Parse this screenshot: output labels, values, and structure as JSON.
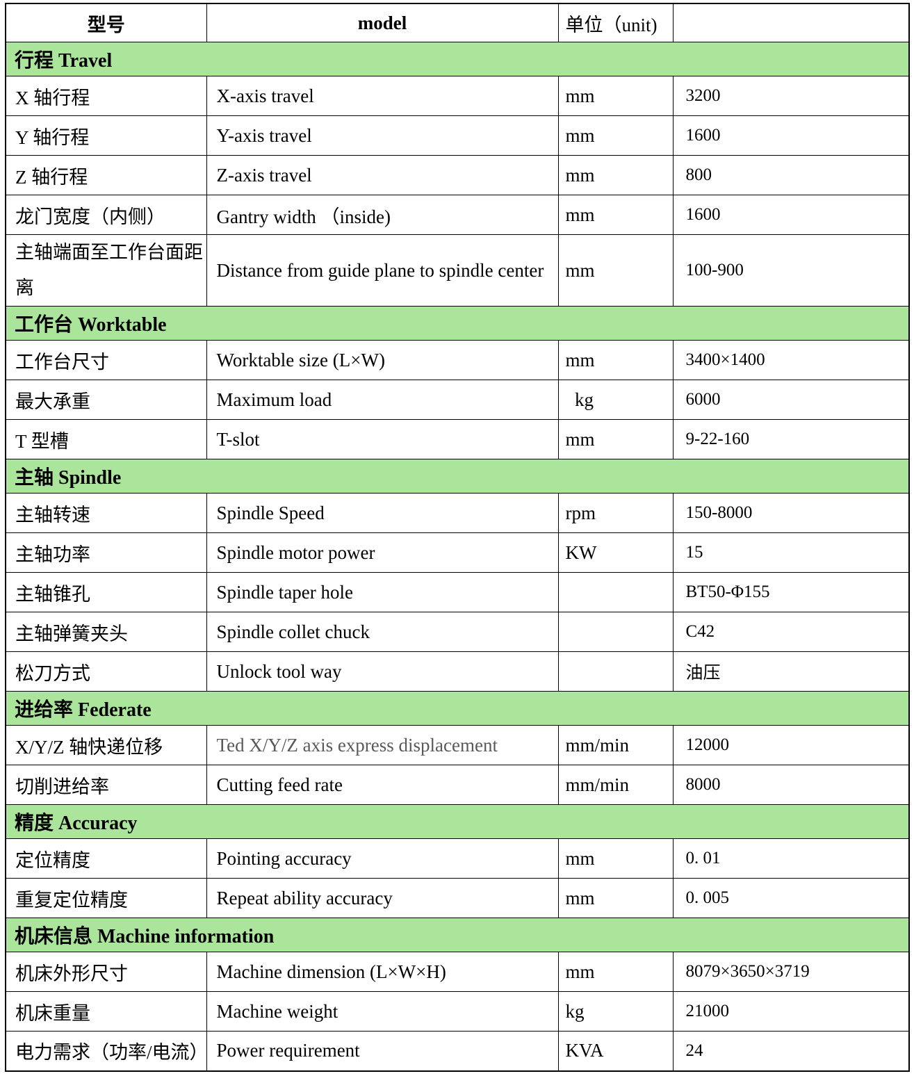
{
  "colors": {
    "section_bg": "#ABE59B",
    "border": "#000000",
    "muted_text": "#595959",
    "page_bg": "#ffffff"
  },
  "header": {
    "model_cn": "型号",
    "model_en": "model",
    "unit": "单位（unit)",
    "value": ""
  },
  "sections": [
    {
      "title": "行程 Travel",
      "rows": [
        {
          "cn": "X 轴行程",
          "en": "X-axis travel",
          "unit": "mm",
          "value": "3200"
        },
        {
          "cn": "Y 轴行程",
          "en": "Y-axis travel",
          "unit": "mm",
          "value": "1600"
        },
        {
          "cn": "Z 轴行程",
          "en": "Z-axis travel",
          "unit": "mm",
          "value": "800"
        },
        {
          "cn": "龙门宽度（内侧）",
          "en": "Gantry width （inside)",
          "unit": "mm",
          "value": "1600"
        },
        {
          "cn": "主轴端面至工作台面距离",
          "en": "Distance from guide plane to spindle center",
          "unit": "mm",
          "value": "100-900",
          "tall": true
        }
      ]
    },
    {
      "title": "工作台 Worktable",
      "rows": [
        {
          "cn": "工作台尺寸",
          "en": "Worktable size (L×W)",
          "unit": "mm",
          "value": "3400×1400"
        },
        {
          "cn": "最大承重",
          "en": "Maximum load",
          "unit": "  kg",
          "value": "6000"
        },
        {
          "cn": "T 型槽",
          "en": "T-slot",
          "unit": "mm",
          "value": "9-22-160"
        }
      ]
    },
    {
      "title": "主轴 Spindle",
      "rows": [
        {
          "cn": "主轴转速",
          "en": "Spindle Speed",
          "unit": "rpm",
          "value": "150-8000"
        },
        {
          "cn": "主轴功率",
          "en": "Spindle motor power",
          "unit": "KW",
          "value": "15"
        },
        {
          "cn": "主轴锥孔",
          "en": "Spindle taper hole",
          "unit": "",
          "value": "BT50-Φ155"
        },
        {
          "cn": "主轴弹簧夹头",
          "en": "Spindle collet chuck",
          "unit": "",
          "value": "C42"
        },
        {
          "cn": "松刀方式",
          "en": "Unlock tool way",
          "unit": "",
          "value": "油压"
        }
      ]
    },
    {
      "title": "进给率 Federate",
      "rows": [
        {
          "cn": "X/Y/Z 轴快递位移",
          "en": "Ted X/Y/Z axis express displacement",
          "unit": "mm/min",
          "value": "12000",
          "en_muted": true
        },
        {
          "cn": "切削进给率",
          "en": "Cutting feed rate",
          "unit": "mm/min",
          "value": "8000"
        }
      ]
    },
    {
      "title": "精度 Accuracy",
      "rows": [
        {
          "cn": "定位精度",
          "en": "Pointing accuracy",
          "unit": "mm",
          "value": "0. 01"
        },
        {
          "cn": "重复定位精度",
          "en": "Repeat ability accuracy",
          "unit": "mm",
          "value": "0. 005"
        }
      ]
    },
    {
      "title": "机床信息 Machine information",
      "rows": [
        {
          "cn": "机床外形尺寸",
          "en": "Machine dimension (L×W×H)",
          "unit": "mm",
          "value": "8079×3650×3719"
        },
        {
          "cn": "机床重量",
          "en": "Machine weight",
          "unit": "kg",
          "value": "21000"
        },
        {
          "cn": "电力需求（功率/电流）",
          "en": "Power requirement",
          "unit": "KVA",
          "value": "24"
        }
      ]
    }
  ]
}
